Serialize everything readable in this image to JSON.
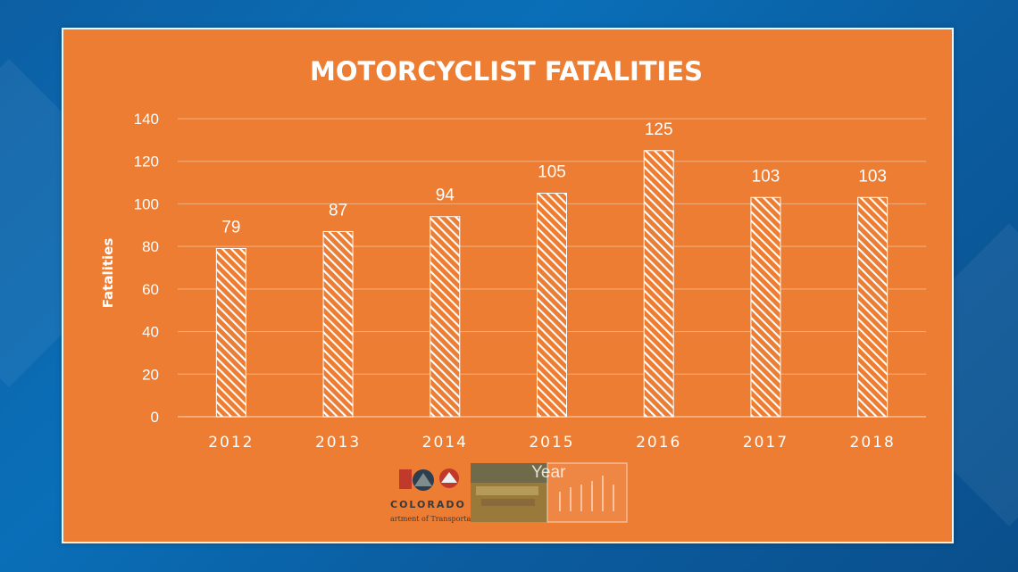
{
  "chart_data": {
    "type": "bar",
    "title": "MOTORCYCLIST FATALITIES",
    "xlabel": "Year",
    "ylabel": "Fatalities",
    "categories": [
      "2012",
      "2013",
      "2014",
      "2015",
      "2016",
      "2017",
      "2018"
    ],
    "values": [
      79,
      87,
      94,
      105,
      125,
      103,
      103
    ],
    "ylim": [
      0,
      140
    ],
    "yticks": [
      0,
      20,
      40,
      60,
      80,
      100,
      120,
      140
    ],
    "grid": true,
    "bar_fill": "white diagonal hatch",
    "colors": {
      "background": "#ec7d33",
      "bars": "#ffffff",
      "gridlines": "#f3a66e"
    }
  },
  "logo": {
    "name": "COLORADO",
    "subtitle": "artment of Transporta",
    "icon": "colorado-dot-logo-icon"
  },
  "colors": {
    "page_background": "#0b5fa5",
    "frame": "#f4f4f4"
  }
}
